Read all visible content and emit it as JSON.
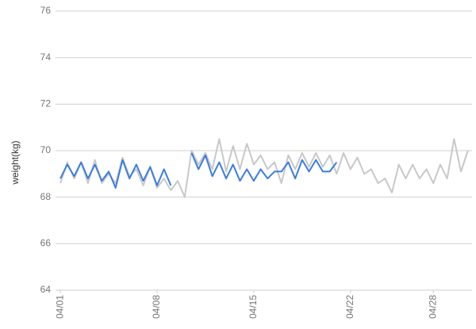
{
  "chart_data": {
    "type": "line",
    "y_label": "weight(kg)",
    "x": [
      1,
      1.5,
      2,
      2.5,
      3,
      3.5,
      4,
      4.5,
      5,
      5.5,
      6,
      6.5,
      7,
      7.5,
      8,
      8.5,
      9,
      9.5,
      10,
      10.5,
      11,
      11.5,
      12,
      12.5,
      13,
      13.5,
      14,
      14.5,
      15,
      15.5,
      16,
      16.5,
      17,
      17.5,
      18,
      18.5,
      19,
      19.5,
      20,
      20.5,
      21,
      21.5,
      22,
      22.5,
      23,
      23.5,
      24,
      24.5,
      25,
      25.5,
      26,
      26.5,
      27,
      27.5,
      28,
      28.5,
      29,
      29.5,
      30,
      30.5
    ],
    "series": [
      {
        "color": "#c8c8c8",
        "values": [
          68.6,
          69.5,
          68.8,
          69.5,
          68.6,
          69.6,
          68.6,
          69.0,
          68.6,
          69.7,
          68.9,
          69.2,
          68.5,
          69.3,
          68.4,
          68.8,
          68.3,
          68.7,
          68.0,
          70.0,
          69.4,
          69.9,
          69.2,
          70.5,
          69.1,
          70.2,
          69.2,
          70.3,
          69.4,
          69.8,
          69.2,
          69.5,
          68.6,
          69.8,
          69.2,
          69.9,
          69.3,
          69.9,
          69.3,
          69.8,
          69.0,
          69.9,
          69.2,
          69.7,
          69.0,
          69.2,
          68.6,
          68.8,
          68.2,
          69.4,
          68.8,
          69.4,
          68.8,
          69.2,
          68.6,
          69.4,
          68.8,
          70.5,
          69.1,
          70.0
        ]
      },
      {
        "color": "#3a7de0",
        "values": [
          68.8,
          69.4,
          68.9,
          69.5,
          68.8,
          69.4,
          68.7,
          69.1,
          68.4,
          69.6,
          68.8,
          69.4,
          68.7,
          69.3,
          68.5,
          69.2,
          68.5,
          null,
          null,
          69.9,
          69.2,
          69.8,
          68.9,
          69.5,
          68.8,
          69.4,
          68.7,
          69.2,
          68.7,
          69.2,
          68.8,
          69.1,
          69.1,
          69.5,
          68.8,
          69.6,
          69.1,
          69.6,
          69.1,
          69.1,
          69.5,
          null,
          null,
          null,
          null,
          null,
          null,
          null,
          null,
          null,
          null,
          null,
          null,
          null,
          null,
          null,
          null,
          null,
          null,
          null
        ]
      }
    ],
    "xlim": [
      0.65,
      30.8
    ],
    "xticks": [
      {
        "value": 1,
        "label": "04/01"
      },
      {
        "value": 8,
        "label": "04/08"
      },
      {
        "value": 15,
        "label": "04/15"
      },
      {
        "value": 22,
        "label": "04/22"
      },
      {
        "value": 28,
        "label": "04/28"
      }
    ],
    "ylim": [
      64,
      76
    ],
    "yticks": [
      64,
      66,
      68,
      70,
      72,
      74,
      76
    ],
    "grid": true
  }
}
